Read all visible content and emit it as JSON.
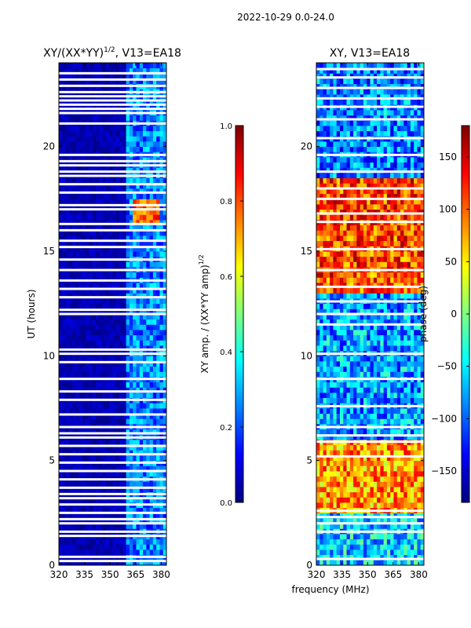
{
  "figure": {
    "suptitle": "2022-10-29 0.0-24.0",
    "xlabel": "frequency (MHz)"
  },
  "colors": {
    "jet_stops": [
      "#00007f",
      "#0000ff",
      "#007fff",
      "#00ffff",
      "#7fff7f",
      "#ffff00",
      "#ff7f00",
      "#ff0000",
      "#7f0000"
    ],
    "background": "#ffffff",
    "axis": "#000000"
  },
  "chart_data": [
    {
      "type": "heatmap",
      "title_main": "XY/(XX*YY)",
      "title_sup": "1/2",
      "title_rest": ", V13=EA18",
      "xlabel": "",
      "ylabel": "UT (hours)",
      "xlim": [
        320,
        383
      ],
      "ylim": [
        0,
        24
      ],
      "xticks": [
        "320",
        "335",
        "350",
        "365",
        "380"
      ],
      "xtick_values": [
        320,
        335,
        350,
        365,
        380
      ],
      "yticks": [
        "0",
        "5",
        "10",
        "15",
        "20"
      ],
      "ytick_values": [
        0,
        5,
        10,
        15,
        20
      ],
      "description_bands": [
        {
          "freq_range": [
            320,
            359
          ],
          "typical_value": 0.05
        },
        {
          "freq_range": [
            360,
            383
          ],
          "typical_value": 0.25
        },
        {
          "freq_range": [
            364,
            380
          ],
          "ut_range": [
            16.2,
            17.5
          ],
          "typical_value": 0.8
        }
      ],
      "blank_rows_ut": [
        0.2,
        0.4,
        1.4,
        1.6,
        2.0,
        2.2,
        2.5,
        2.9,
        3.2,
        3.4,
        3.7,
        4.1,
        4.5,
        4.9,
        5.3,
        5.7,
        6.1,
        6.3,
        6.6,
        7.2,
        7.9,
        8.3,
        8.9,
        9.7,
        10.1,
        10.3,
        12.0,
        12.2,
        12.8,
        13.2,
        13.6,
        14.1,
        14.6,
        15.2,
        15.5,
        16.0,
        16.3,
        17.0,
        17.2,
        17.8,
        18.2,
        18.6,
        18.8,
        19.1,
        19.3,
        19.6,
        21.1,
        21.6,
        21.8,
        22.0,
        22.2,
        22.4,
        22.6,
        22.9,
        23.2,
        23.5
      ],
      "colorbar": {
        "label_main": "XY amp. / (XX*YY amp)",
        "label_sup": "1/2",
        "vmin": 0.0,
        "vmax": 1.0,
        "ticks": [
          "0.0",
          "0.2",
          "0.4",
          "0.6",
          "0.8",
          "1.0"
        ],
        "tick_values": [
          0.0,
          0.2,
          0.4,
          0.6,
          0.8,
          1.0
        ]
      }
    },
    {
      "type": "heatmap",
      "title": "XY, V13=EA18",
      "xlabel": "",
      "ylabel": "",
      "xlim": [
        320,
        383
      ],
      "ylim": [
        0,
        24
      ],
      "xticks": [
        "320",
        "335",
        "350",
        "365",
        "380"
      ],
      "xtick_values": [
        320,
        335,
        350,
        365,
        380
      ],
      "yticks": [
        "0",
        "5",
        "10",
        "15",
        "20"
      ],
      "ytick_values": [
        0,
        5,
        10,
        15,
        20
      ],
      "description_bands": [
        {
          "ut_range": [
            0,
            2.5
          ],
          "typical_value": -60
        },
        {
          "ut_range": [
            2.5,
            6
          ],
          "typical_value": 80
        },
        {
          "ut_range": [
            6,
            13
          ],
          "typical_value": -80
        },
        {
          "ut_range": [
            13,
            18.5
          ],
          "typical_value": 110
        },
        {
          "ut_range": [
            18.5,
            24
          ],
          "typical_value": -90
        }
      ],
      "blank_rows_ut": [
        0.3,
        1.6,
        2.0,
        2.3,
        2.6,
        5.2,
        5.9,
        6.2,
        6.6,
        7.6,
        8.9,
        10.1,
        11.5,
        12.0,
        12.6,
        13.3,
        14.1,
        15.1,
        16.4,
        16.8,
        17.5,
        18.0,
        18.8,
        19.6,
        20.4,
        21.3,
        21.9,
        22.3,
        22.8,
        23.3,
        23.7
      ],
      "colorbar": {
        "label": "phase (deg)",
        "vmin": -180,
        "vmax": 180,
        "ticks": [
          "−150",
          "−100",
          "−50",
          "0",
          "50",
          "100",
          "150"
        ],
        "tick_values": [
          -150,
          -100,
          -50,
          0,
          50,
          100,
          150
        ]
      }
    }
  ]
}
